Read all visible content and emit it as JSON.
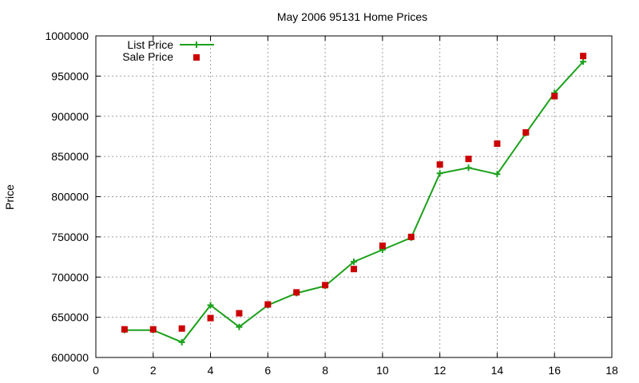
{
  "chart_data": {
    "type": "line",
    "title": "May 2006 95131 Home Prices",
    "xlabel": "",
    "ylabel": "Price",
    "xlim": [
      0,
      18
    ],
    "ylim": [
      600000,
      1000000
    ],
    "xticks": [
      0,
      2,
      4,
      6,
      8,
      10,
      12,
      14,
      16,
      18
    ],
    "yticks": [
      600000,
      650000,
      700000,
      750000,
      800000,
      850000,
      900000,
      950000,
      1000000
    ],
    "grid": true,
    "legend_position": "top-left",
    "series": [
      {
        "name": "List Price",
        "style": "line-points",
        "marker": "plus",
        "color": "#1aa11a",
        "x": [
          1,
          2,
          3,
          4,
          5,
          6,
          7,
          8,
          9,
          10,
          11,
          12,
          13,
          14,
          15,
          16,
          17
        ],
        "y": [
          634000,
          634000,
          619000,
          665000,
          638000,
          665000,
          680000,
          689000,
          719000,
          734000,
          749000,
          829000,
          836000,
          828000,
          879000,
          929000,
          968000
        ]
      },
      {
        "name": "Sale Price",
        "style": "points",
        "marker": "square",
        "color": "#cc0000",
        "x": [
          1,
          2,
          3,
          4,
          5,
          6,
          7,
          8,
          9,
          10,
          11,
          12,
          13,
          14,
          15,
          16,
          17
        ],
        "y": [
          635000,
          635000,
          636000,
          649000,
          655000,
          666000,
          681000,
          690000,
          710000,
          739000,
          750000,
          840000,
          847000,
          866000,
          880000,
          925000,
          975000
        ]
      }
    ]
  }
}
